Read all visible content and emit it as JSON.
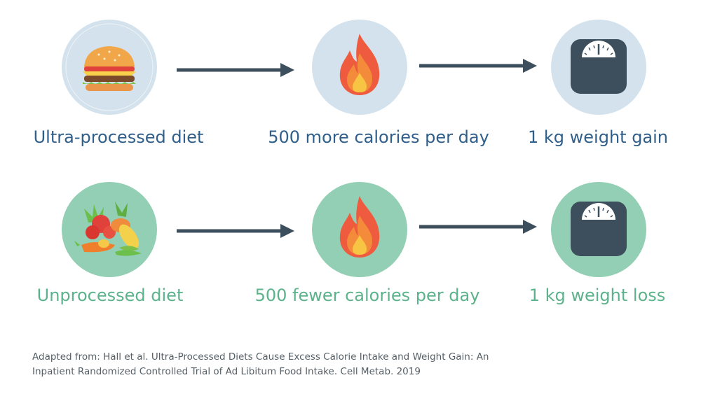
{
  "colors": {
    "processed_bg": "#d3e2ec",
    "unprocessed_bg": "#93cfb4",
    "processed_text": "#2f5f8a",
    "unprocessed_text": "#5cb38b",
    "arrow": "#3d4f5c",
    "scale": "#3d4f5c",
    "flame_outer": "#ef5b3f",
    "flame_mid": "#f38b3b",
    "flame_inner": "#f8c443"
  },
  "rows": [
    {
      "diet_label": "Ultra-processed diet",
      "calorie_label": "500 more calories per day",
      "weight_label": "1 kg weight gain",
      "diet_icon": "burger-icon",
      "calorie_icon": "flame-icon",
      "weight_icon": "scale-icon"
    },
    {
      "diet_label": "Unprocessed diet",
      "calorie_label": "500 fewer calories per day",
      "weight_label": "1 kg weight loss",
      "diet_icon": "vegetables-icon",
      "calorie_icon": "flame-icon",
      "weight_icon": "scale-icon"
    }
  ],
  "source": {
    "line1": "Adapted from: Hall et al. Ultra-Processed Diets Cause Excess Calorie Intake and Weight Gain: An",
    "line2": "Inpatient Randomized Controlled Trial of Ad Libitum Food Intake. Cell Metab. 2019"
  }
}
